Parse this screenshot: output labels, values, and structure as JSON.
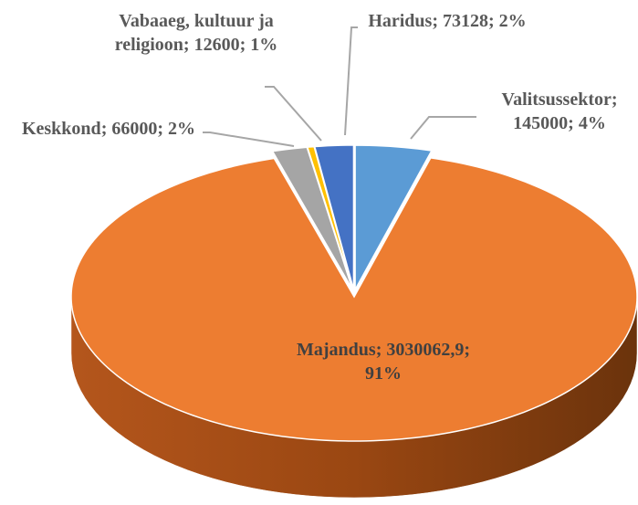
{
  "chart_data": {
    "type": "pie3d",
    "categories": [
      "Valitsussektor",
      "Majandus",
      "Keskkond",
      "Vabaaeg, kultuur ja religioon",
      "Haridus"
    ],
    "values": [
      145000,
      3030062.9,
      66000,
      12600,
      73128
    ],
    "value_labels": [
      "; 145000; 4%",
      "; 3030062,9; 91%",
      "; 66000; 2%",
      "; 12600; 1%",
      "; 73128; 2%"
    ],
    "colors": [
      "#5b9bd5",
      "#ed7d31",
      "#a5a5a5",
      "#ffc000",
      "#4472c4"
    ]
  }
}
